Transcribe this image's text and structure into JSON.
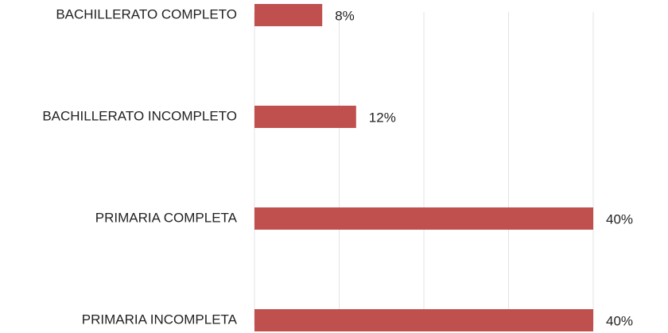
{
  "chart_data": {
    "type": "bar",
    "orientation": "horizontal",
    "categories": [
      "BACHILLERATO COMPLETO",
      "BACHILLERATO INCOMPLETO",
      "PRIMARIA COMPLETA",
      "PRIMARIA INCOMPLETA"
    ],
    "values": [
      8,
      12,
      40,
      40
    ],
    "value_labels": [
      "8%",
      "12%",
      "40%",
      "40%"
    ],
    "color": "#c0504d",
    "xlim": [
      0,
      40
    ],
    "xticks": [
      0,
      10,
      20,
      30,
      40
    ],
    "grid": true
  }
}
